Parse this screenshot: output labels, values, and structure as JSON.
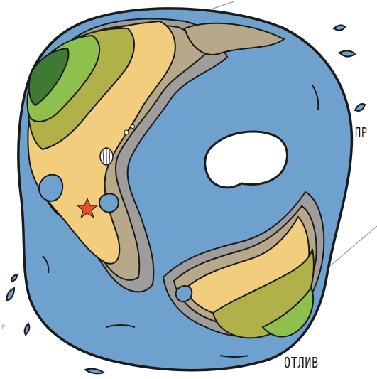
{
  "labels": {
    "high_tide": "ПР",
    "low_tide": "ОТЛИВ",
    "edge_mark": "E"
  },
  "colors": {
    "water": "#6fa1cf",
    "deep_water_outline": "#1a1a1a",
    "sand": "#f2cd7e",
    "wet_sand": "#b7a88a",
    "mud": "#9e9d9c",
    "light_green": "#8dc04d",
    "olive": "#b1b14a",
    "dark_green": "#3f7a35",
    "starfish": "#e8502a",
    "island": "#ffffff"
  },
  "icons": {
    "starfish": "starfish-icon",
    "shell": "shell-icon"
  }
}
